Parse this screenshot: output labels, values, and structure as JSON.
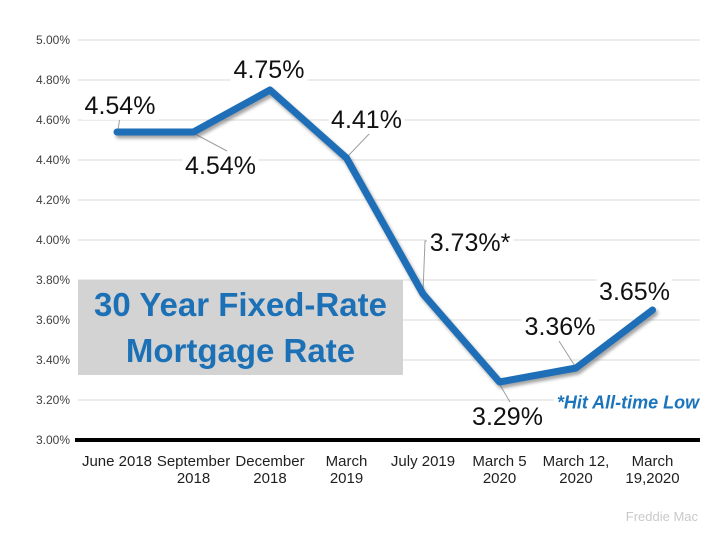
{
  "chart_data": {
    "type": "line",
    "title": "30 Year Fixed-Rate Mortgage Rate",
    "title_lines": [
      "30 Year Fixed-Rate",
      "Mortgage Rate"
    ],
    "categories": [
      "June 2018",
      "September 2018",
      "December 2018",
      "March 2019",
      "July 2019",
      "March 5 2020",
      "March 12, 2020",
      "March 19,2020"
    ],
    "categories_lines": [
      [
        "June 2018"
      ],
      [
        "September",
        "2018"
      ],
      [
        "December",
        "2018"
      ],
      [
        "March",
        "2019"
      ],
      [
        "July 2019"
      ],
      [
        "March 5",
        "2020"
      ],
      [
        "March 12,",
        "2020"
      ],
      [
        "March",
        "19,2020"
      ]
    ],
    "values": [
      4.54,
      4.54,
      4.75,
      4.41,
      3.73,
      3.29,
      3.36,
      3.65
    ],
    "point_labels": [
      "4.54%",
      "4.54%",
      "4.75%",
      "4.41%",
      "3.73%*",
      "3.29%",
      "3.36%",
      "3.65%"
    ],
    "ylim": [
      3.0,
      5.0
    ],
    "y_tick_step": 0.2,
    "y_tick_labels": [
      "5.00%",
      "4.80%",
      "4.60%",
      "4.40%",
      "4.20%",
      "4.00%",
      "3.80%",
      "3.60%",
      "3.40%",
      "3.20%",
      "3.00%"
    ],
    "grid": true,
    "legend": "none",
    "annotation": "*Hit All-time Low",
    "source": "Freddie Mac",
    "line_color": "#1e6fb8",
    "gridline_color": "#d9d9d9",
    "axis_line_color": "#000000",
    "leader_color": "#9e9e9e",
    "tick_label_color": "#3f3f3f",
    "annotation_color": "#1b75bc",
    "title_color": "#1c70b6",
    "title_bg": "#d3d3d3"
  }
}
